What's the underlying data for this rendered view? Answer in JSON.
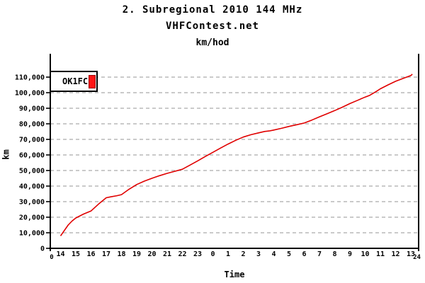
{
  "header": {
    "title": "2. Subregional 2010 144 MHz",
    "subtitle": "VHFContest.net",
    "unit_label": "km/hod"
  },
  "legend": {
    "station": "OK1FC",
    "swatch_color": "#ff1414",
    "swatch_border": "#9a0000"
  },
  "chart_data": {
    "type": "line",
    "title": "2. Subregional 2010 144 MHz",
    "subtitle": "VHFContest.net",
    "units": "km/hod",
    "xlabel": "Time",
    "ylabel": "km",
    "legend_position": "top-left",
    "grid": "horizontal-dashed",
    "grid_color": "#aaaaaa",
    "axis_color": "#000000",
    "x_unit": "hours since contest start (14:00)",
    "x_tick_labels": [
      "14",
      "15",
      "16",
      "17",
      "18",
      "19",
      "20",
      "21",
      "22",
      "23",
      "0",
      "1",
      "2",
      "3",
      "4",
      "5",
      "6",
      "7",
      "8",
      "9",
      "10",
      "11",
      "12",
      "13"
    ],
    "x_edge_labels": {
      "left": "0",
      "right": "24"
    },
    "y_ticks": [
      {
        "value": 0,
        "label": "0"
      },
      {
        "value": 10000,
        "label": "10,000"
      },
      {
        "value": 20000,
        "label": "20,000"
      },
      {
        "value": 30000,
        "label": "30,000"
      },
      {
        "value": 40000,
        "label": "40,000"
      },
      {
        "value": 50000,
        "label": "50,000"
      },
      {
        "value": 60000,
        "label": "60,000"
      },
      {
        "value": 70000,
        "label": "70,000"
      },
      {
        "value": 80000,
        "label": "80,000"
      },
      {
        "value": 90000,
        "label": "90,000"
      },
      {
        "value": 100000,
        "label": "100,000"
      },
      {
        "value": 110000,
        "label": "110,000"
      }
    ],
    "ylim": [
      0,
      125000
    ],
    "series": [
      {
        "name": "OK1FC",
        "color": "#e00000",
        "points_format": [
          "hours_since_start",
          "km"
        ],
        "points": [
          [
            0,
            8000
          ],
          [
            0.25,
            11500
          ],
          [
            0.5,
            15000
          ],
          [
            0.75,
            17500
          ],
          [
            1,
            19500
          ],
          [
            1.5,
            22000
          ],
          [
            2,
            24000
          ],
          [
            2.5,
            28500
          ],
          [
            3,
            32500
          ],
          [
            3.3,
            33100
          ],
          [
            3.7,
            33800
          ],
          [
            4,
            34500
          ],
          [
            4.5,
            38000
          ],
          [
            5,
            41000
          ],
          [
            5.5,
            43200
          ],
          [
            6,
            45000
          ],
          [
            6.5,
            46700
          ],
          [
            7,
            48200
          ],
          [
            7.5,
            49500
          ],
          [
            8,
            50800
          ],
          [
            8.5,
            53500
          ],
          [
            9,
            56200
          ],
          [
            9.5,
            59000
          ],
          [
            10,
            61700
          ],
          [
            10.5,
            64400
          ],
          [
            11,
            67000
          ],
          [
            11.5,
            69400
          ],
          [
            12,
            71500
          ],
          [
            12.5,
            73000
          ],
          [
            13,
            74200
          ],
          [
            13.4,
            75100
          ],
          [
            13.7,
            75400
          ],
          [
            14,
            76000
          ],
          [
            14.5,
            77100
          ],
          [
            15,
            78300
          ],
          [
            15.5,
            79400
          ],
          [
            16,
            80500
          ],
          [
            16.5,
            82400
          ],
          [
            17,
            84500
          ],
          [
            17.5,
            86500
          ],
          [
            18,
            88500
          ],
          [
            18.5,
            90700
          ],
          [
            19,
            93000
          ],
          [
            19.5,
            95100
          ],
          [
            20,
            97200
          ],
          [
            20.3,
            98300
          ],
          [
            20.7,
            100600
          ],
          [
            21,
            102500
          ],
          [
            21.5,
            105000
          ],
          [
            22,
            107300
          ],
          [
            22.5,
            109200
          ],
          [
            23,
            111000
          ],
          [
            23.1,
            111900
          ]
        ]
      }
    ]
  }
}
